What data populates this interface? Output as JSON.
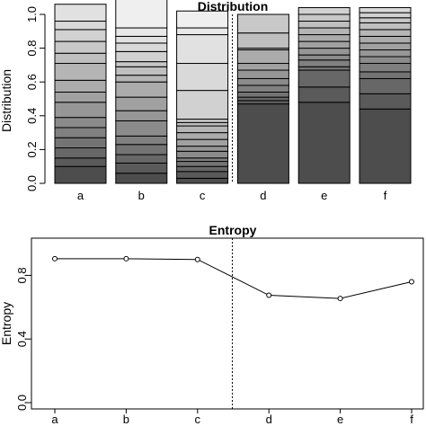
{
  "chart_data": [
    {
      "type": "bar",
      "stacked": true,
      "title": "Distribution",
      "ylabel": "Distribution",
      "categories": [
        "a",
        "b",
        "c",
        "d",
        "e",
        "f"
      ],
      "ylim": [
        0,
        1
      ],
      "yticks": [
        "0.0",
        "0.2",
        "0.4",
        "0.6",
        "0.8",
        "1.0"
      ],
      "segments_bottom_to_top": [
        [
          0.1,
          0.05,
          0.06,
          0.06,
          0.06,
          0.06,
          0.09,
          0.06,
          0.07,
          0.1,
          0.06,
          0.07,
          0.07,
          0.05,
          0.1
        ],
        [
          0.06,
          0.06,
          0.05,
          0.06,
          0.05,
          0.09,
          0.06,
          0.08,
          0.09,
          0.04,
          0.05,
          0.03,
          0.06,
          0.05,
          0.04,
          0.05,
          0.18
        ],
        [
          0.03,
          0.04,
          0.03,
          0.03,
          0.02,
          0.04,
          0.03,
          0.04,
          0.04,
          0.04,
          0.02,
          0.02,
          0.17,
          0.16,
          0.17,
          0.04,
          0.1
        ],
        [
          0.47,
          0.02,
          0.02,
          0.03,
          0.04,
          0.04,
          0.05,
          0.04,
          0.08,
          0.01,
          0.09,
          0.11
        ],
        [
          0.48,
          0.09,
          0.1,
          0.02,
          0.04,
          0.03,
          0.04,
          0.04,
          0.04,
          0.04,
          0.04,
          0.04,
          0.04
        ],
        [
          0.44,
          0.09,
          0.09,
          0.04,
          0.05,
          0.04,
          0.04,
          0.04,
          0.04,
          0.04,
          0.04,
          0.03,
          0.03,
          0.03
        ]
      ],
      "segment_colors": [
        "#4d4d4d",
        "#5a5a5a",
        "#676767",
        "#747474",
        "#808080",
        "#8b8b8b",
        "#969696",
        "#a1a1a1",
        "#ababab",
        "#b5b5b5",
        "#bfbfbf",
        "#c8c8c8",
        "#d1d1d1",
        "#d9d9d9",
        "#e1e1e1",
        "#e8e8e8",
        "#efefef"
      ],
      "divider_between": [
        "c",
        "d"
      ],
      "divider_style": "dotted vertical line"
    },
    {
      "type": "line",
      "title": "Entropy",
      "ylabel": "Entropy",
      "categories": [
        "a",
        "b",
        "c",
        "d",
        "e",
        "f"
      ],
      "values": [
        0.905,
        0.905,
        0.9,
        0.675,
        0.655,
        0.76
      ],
      "ylim": [
        0,
        1
      ],
      "yticks": [
        "0.0",
        "0.4",
        "0.8"
      ],
      "marker": "open circle",
      "divider_between": [
        "c",
        "d"
      ],
      "divider_style": "dotted vertical line"
    }
  ]
}
